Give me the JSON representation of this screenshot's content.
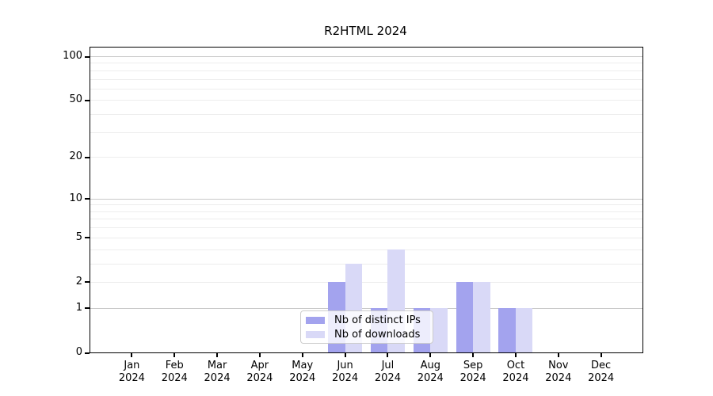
{
  "chart_data": {
    "type": "bar",
    "title": "R2HTML 2024",
    "xlabel": "",
    "ylabel": "",
    "yscale": "log1p",
    "ylim": [
      0,
      115
    ],
    "yticks": [
      100,
      50,
      20,
      10,
      5,
      2,
      1,
      0
    ],
    "ytick_labels": [
      "100",
      "50",
      "20",
      "10",
      "5",
      "2",
      "1",
      "0"
    ],
    "major_gridlines": [
      1,
      10,
      100
    ],
    "minor_gridlines": [
      2,
      3,
      4,
      5,
      6,
      7,
      8,
      9,
      20,
      30,
      40,
      50,
      60,
      70,
      80,
      90
    ],
    "categories": [
      {
        "month": "Jan",
        "year": "2024"
      },
      {
        "month": "Feb",
        "year": "2024"
      },
      {
        "month": "Mar",
        "year": "2024"
      },
      {
        "month": "Apr",
        "year": "2024"
      },
      {
        "month": "May",
        "year": "2024"
      },
      {
        "month": "Jun",
        "year": "2024"
      },
      {
        "month": "Jul",
        "year": "2024"
      },
      {
        "month": "Aug",
        "year": "2024"
      },
      {
        "month": "Sep",
        "year": "2024"
      },
      {
        "month": "Oct",
        "year": "2024"
      },
      {
        "month": "Nov",
        "year": "2024"
      },
      {
        "month": "Dec",
        "year": "2024"
      }
    ],
    "series": [
      {
        "name": "Nb of distinct IPs",
        "color": "#a3a3ee",
        "values": [
          0,
          0,
          0,
          0,
          0,
          2,
          1,
          1,
          2,
          1,
          0,
          0
        ]
      },
      {
        "name": "Nb of downloads",
        "color": "#d9d9f7",
        "values": [
          0,
          0,
          0,
          0,
          0,
          3,
          4,
          1,
          2,
          1,
          0,
          0
        ]
      }
    ],
    "legend": {
      "entries": [
        "Nb of distinct IPs",
        "Nb of downloads"
      ],
      "position": "lower center-left, overlapping Jul-Aug bars",
      "background": "rgba(255,255,255,0.8)",
      "border_color": "#cccccc"
    },
    "colors": {
      "major_gridline": "#c9c9c9",
      "minor_gridline": "#ededed",
      "axis": "#000000",
      "background": "#ffffff"
    }
  }
}
